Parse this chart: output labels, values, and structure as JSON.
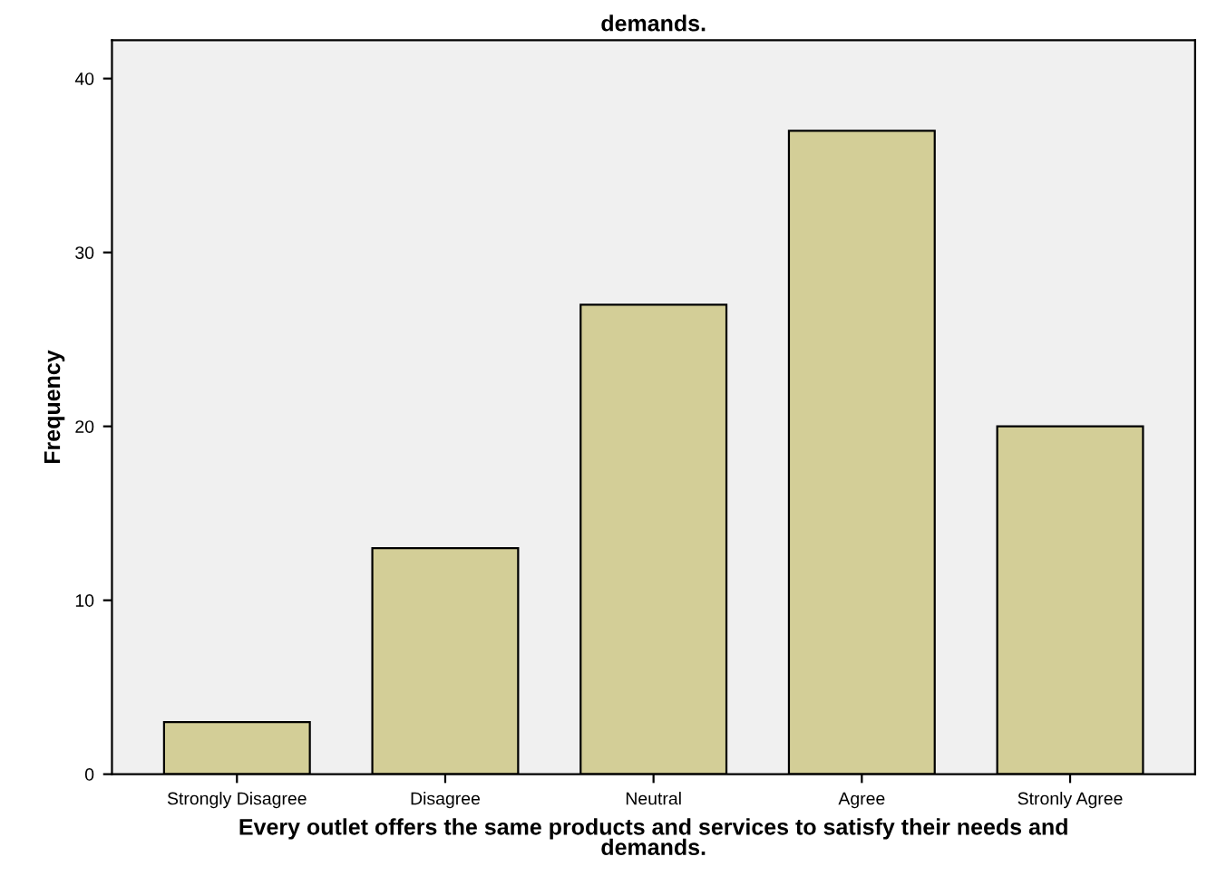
{
  "chart_data": {
    "type": "bar",
    "title": "demands.",
    "xlabel": "Every outlet offers the same products and services to satisfy their needs and\ndemands.",
    "ylabel": "Frequency",
    "categories": [
      "Strongly Disagree",
      "Disagree",
      "Neutral",
      "Agree",
      "Stronly Agree"
    ],
    "values": [
      3,
      13,
      27,
      37,
      20
    ],
    "color": "#d3ce97",
    "ylim": [
      0,
      42.2
    ],
    "yticks": [
      0,
      10,
      20,
      30,
      40
    ],
    "grid": false
  }
}
